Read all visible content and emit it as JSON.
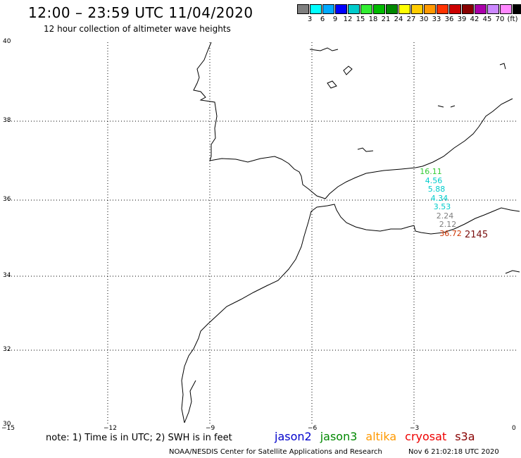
{
  "header": {
    "title": "12:00 – 23:59 UTC 11/04/2020",
    "subtitle": "12 hour collection of altimeter wave heights"
  },
  "colorbar": {
    "colors": [
      "#7f7f7f",
      "#00ffff",
      "#00aaff",
      "#0000ff",
      "#00cccc",
      "#33ee33",
      "#00bb00",
      "#008800",
      "#ffff00",
      "#ffcc00",
      "#ff9900",
      "#ff3300",
      "#cc0000",
      "#880000",
      "#aa00aa",
      "#cc88ff",
      "#ff88ff",
      "#000000"
    ],
    "labels": [
      "3",
      "6",
      "9",
      "12",
      "15",
      "18",
      "21",
      "24",
      "27",
      "30",
      "33",
      "36",
      "39",
      "42",
      "45",
      "70",
      "(ft)"
    ]
  },
  "axes": {
    "lat_labels": [
      "40",
      "38",
      "36",
      "34",
      "32",
      "30"
    ],
    "lon_labels": [
      "−15",
      "−12",
      "−9",
      "−6",
      "−3",
      "0"
    ]
  },
  "observations": [
    {
      "value": "16.11",
      "color": "#33cc33"
    },
    {
      "value": "4.56",
      "color": "#00cccc"
    },
    {
      "value": "5.88",
      "color": "#00cccc"
    },
    {
      "value": "4.34",
      "color": "#00cccc"
    },
    {
      "value": "3.53",
      "color": "#00cccc"
    },
    {
      "value": "2.24",
      "color": "#7f7f7f"
    },
    {
      "value": "2.12",
      "color": "#7f7f7f"
    },
    {
      "value": "36.72",
      "color": "#cc3300"
    }
  ],
  "observation_count": "2145",
  "note": "note: 1) Time is in UTC; 2) SWH is in feet",
  "legend": [
    {
      "label": "jason2",
      "color": "#0000cc"
    },
    {
      "label": "jason3",
      "color": "#008800"
    },
    {
      "label": "altika",
      "color": "#ff9900"
    },
    {
      "label": "cryosat",
      "color": "#ee0000"
    },
    {
      "label": "s3a",
      "color": "#880000"
    }
  ],
  "footer": {
    "credit": "NOAA/NESDIS Center for Satellite Applications and Research",
    "timestamp": "Nov  6 21:02:18 UTC 2020"
  }
}
